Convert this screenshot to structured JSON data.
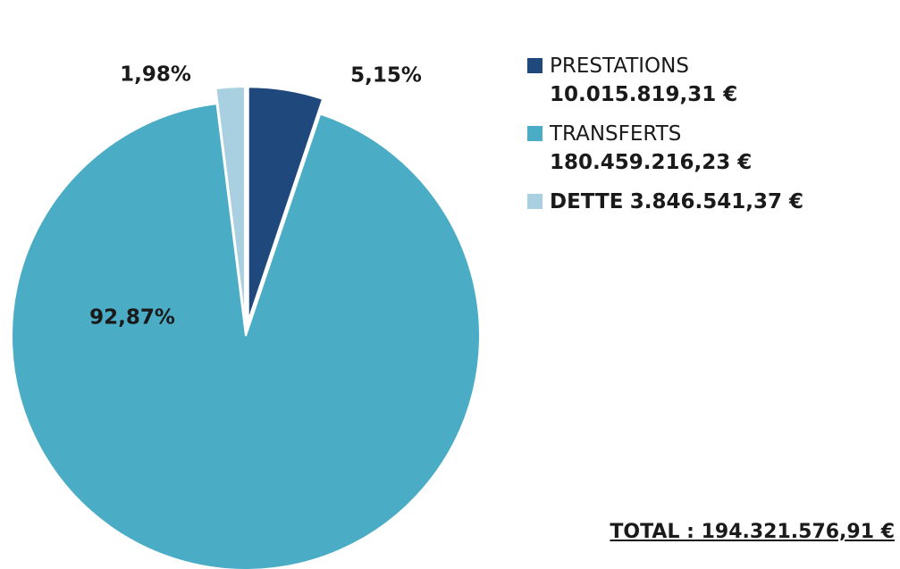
{
  "chart_data": {
    "type": "pie",
    "series": [
      {
        "name": "PRESTATIONS",
        "amount": "10.015.819,31 €",
        "percent_label": "5,15%",
        "value": 5.15,
        "color": "#1f497d"
      },
      {
        "name": "TRANSFERTS",
        "amount": "180.459.216,23 €",
        "percent_label": "92,87%",
        "value": 92.87,
        "color": "#4bacc6"
      },
      {
        "name": "DETTE",
        "amount": "3.846.541,37 €",
        "percent_label": "1,98%",
        "value": 1.98,
        "color": "#a9d0e0"
      }
    ],
    "total_label": "TOTAL : 194.321.576,91 €",
    "legend_position": "right"
  }
}
